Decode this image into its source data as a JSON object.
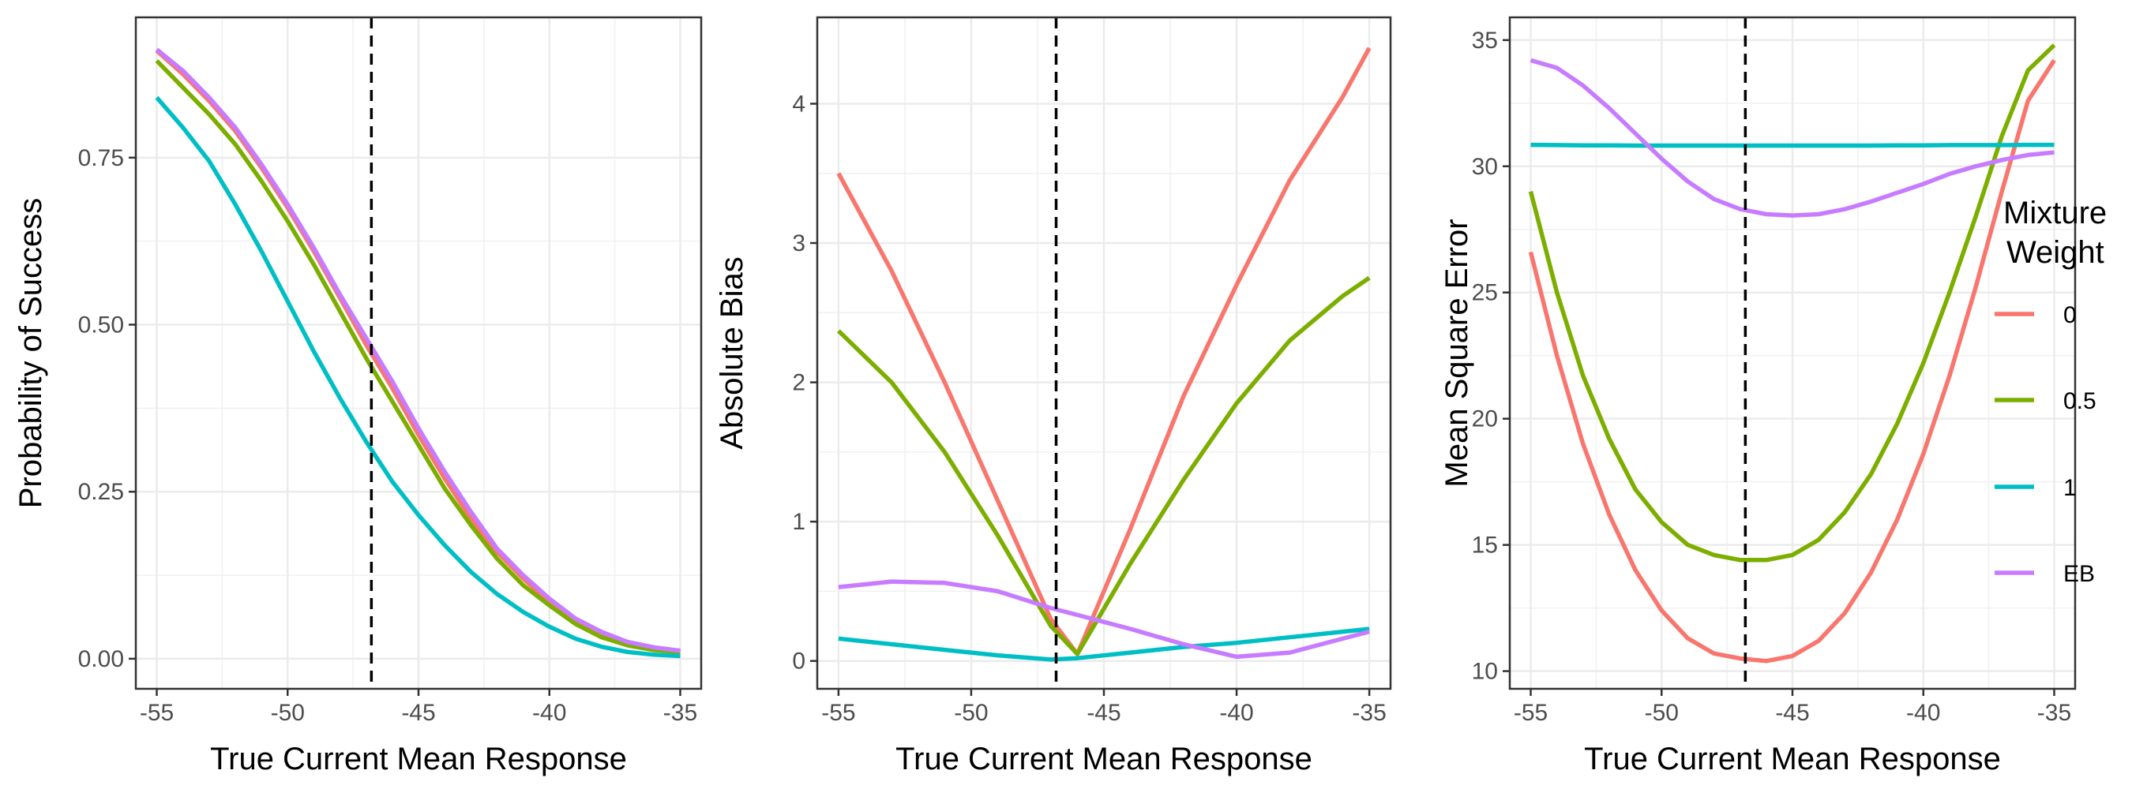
{
  "legend": {
    "title_line1": "Mixture",
    "title_line2": "Weight",
    "items": [
      {
        "label": "0",
        "color": "#F8766D"
      },
      {
        "label": "0.5",
        "color": "#7CAE00"
      },
      {
        "label": "1",
        "color": "#00BFC4"
      },
      {
        "label": "EB",
        "color": "#C77CFF"
      }
    ]
  },
  "chart_data": [
    {
      "type": "line",
      "xlabel": "True Current Mean Response",
      "ylabel": "Probability of Success",
      "xlim": [
        -55.8,
        -34.2
      ],
      "ylim": [
        -0.045,
        0.96
      ],
      "xticks": [
        -55,
        -50,
        -45,
        -40,
        -35
      ],
      "xtick_labels": [
        "-55",
        "-50",
        "-45",
        "-40",
        "-35"
      ],
      "yticks": [
        0,
        0.25,
        0.5,
        0.75
      ],
      "ytick_labels": [
        "0.00",
        "0.25",
        "0.50",
        "0.75"
      ],
      "vline": -46.8,
      "grid": true,
      "x": [
        -55,
        -54,
        -53,
        -52,
        -51,
        -50,
        -49,
        -48,
        -47,
        -46,
        -45,
        -44,
        -43,
        -42,
        -41,
        -40,
        -39,
        -38,
        -37,
        -36,
        -35
      ],
      "series": [
        {
          "name": "0",
          "color": "#F8766D",
          "values": [
            0.91,
            0.875,
            0.835,
            0.79,
            0.735,
            0.675,
            0.61,
            0.54,
            0.47,
            0.405,
            0.335,
            0.27,
            0.21,
            0.16,
            0.12,
            0.085,
            0.055,
            0.035,
            0.022,
            0.015,
            0.012
          ]
        },
        {
          "name": "0.5",
          "color": "#7CAE00",
          "values": [
            0.895,
            0.855,
            0.815,
            0.77,
            0.715,
            0.655,
            0.59,
            0.52,
            0.45,
            0.385,
            0.32,
            0.255,
            0.2,
            0.15,
            0.11,
            0.08,
            0.052,
            0.032,
            0.02,
            0.013,
            0.01
          ]
        },
        {
          "name": "1",
          "color": "#00BFC4",
          "values": [
            0.84,
            0.795,
            0.745,
            0.68,
            0.61,
            0.535,
            0.46,
            0.39,
            0.325,
            0.265,
            0.215,
            0.17,
            0.13,
            0.097,
            0.07,
            0.048,
            0.03,
            0.018,
            0.01,
            0.006,
            0.004
          ]
        },
        {
          "name": "EB",
          "color": "#C77CFF",
          "values": [
            0.912,
            0.88,
            0.84,
            0.795,
            0.74,
            0.68,
            0.615,
            0.545,
            0.48,
            0.415,
            0.345,
            0.28,
            0.22,
            0.165,
            0.125,
            0.09,
            0.06,
            0.04,
            0.025,
            0.017,
            0.012
          ]
        }
      ]
    },
    {
      "type": "line",
      "xlabel": "True Current Mean Response",
      "ylabel": "Absolute Bias",
      "xlim": [
        -55.8,
        -34.2
      ],
      "ylim": [
        -0.2,
        4.62
      ],
      "xticks": [
        -55,
        -50,
        -45,
        -40,
        -35
      ],
      "xtick_labels": [
        "-55",
        "-50",
        "-45",
        "-40",
        "-35"
      ],
      "yticks": [
        0,
        1,
        2,
        3,
        4
      ],
      "ytick_labels": [
        "0",
        "1",
        "2",
        "3",
        "4"
      ],
      "vline": -46.8,
      "grid": true,
      "x": [
        -55,
        -53,
        -51,
        -49,
        -47,
        -46,
        -44,
        -42,
        -40,
        -38,
        -36,
        -35
      ],
      "series": [
        {
          "name": "0",
          "color": "#F8766D",
          "values": [
            3.5,
            2.8,
            2.0,
            1.15,
            0.3,
            0.05,
            0.95,
            1.9,
            2.7,
            3.45,
            4.05,
            4.4
          ]
        },
        {
          "name": "0.5",
          "color": "#7CAE00",
          "values": [
            2.37,
            2.0,
            1.5,
            0.9,
            0.25,
            0.05,
            0.7,
            1.3,
            1.85,
            2.3,
            2.62,
            2.75
          ]
        },
        {
          "name": "1",
          "color": "#00BFC4",
          "values": [
            0.16,
            0.12,
            0.08,
            0.04,
            0.01,
            0.02,
            0.06,
            0.1,
            0.13,
            0.17,
            0.21,
            0.23
          ]
        },
        {
          "name": "EB",
          "color": "#C77CFF",
          "values": [
            0.53,
            0.57,
            0.56,
            0.5,
            0.38,
            0.33,
            0.23,
            0.12,
            0.03,
            0.06,
            0.16,
            0.21
          ]
        }
      ]
    },
    {
      "type": "line",
      "xlabel": "True Current Mean Response",
      "ylabel": "Mean Square Error",
      "xlim": [
        -55.8,
        -34.2
      ],
      "ylim": [
        9.3,
        35.9
      ],
      "xticks": [
        -55,
        -50,
        -45,
        -40,
        -35
      ],
      "xtick_labels": [
        "-55",
        "-50",
        "-45",
        "-40",
        "-35"
      ],
      "yticks": [
        10,
        15,
        20,
        25,
        30,
        35
      ],
      "ytick_labels": [
        "10",
        "15",
        "20",
        "25",
        "30",
        "35"
      ],
      "vline": -46.8,
      "grid": true,
      "x": [
        -55,
        -54,
        -53,
        -52,
        -51,
        -50,
        -49,
        -48,
        -47,
        -46,
        -45,
        -44,
        -43,
        -42,
        -41,
        -40,
        -39,
        -38,
        -37,
        -36,
        -35
      ],
      "series": [
        {
          "name": "0",
          "color": "#F8766D",
          "values": [
            26.6,
            22.5,
            19.0,
            16.2,
            14.0,
            12.4,
            11.3,
            10.7,
            10.5,
            10.4,
            10.6,
            11.2,
            12.3,
            13.9,
            16.0,
            18.6,
            21.7,
            25.2,
            29.0,
            32.6,
            34.2
          ]
        },
        {
          "name": "0.5",
          "color": "#7CAE00",
          "values": [
            29.0,
            25.0,
            21.7,
            19.2,
            17.2,
            15.9,
            15.0,
            14.6,
            14.4,
            14.4,
            14.6,
            15.2,
            16.3,
            17.8,
            19.8,
            22.2,
            25.0,
            28.0,
            31.2,
            33.8,
            34.8
          ]
        },
        {
          "name": "1",
          "color": "#00BFC4",
          "values": [
            30.85,
            30.84,
            30.83,
            30.83,
            30.82,
            30.82,
            30.82,
            30.82,
            30.82,
            30.82,
            30.82,
            30.82,
            30.82,
            30.82,
            30.83,
            30.83,
            30.84,
            30.84,
            30.84,
            30.85,
            30.85
          ]
        },
        {
          "name": "EB",
          "color": "#C77CFF",
          "values": [
            34.2,
            33.9,
            33.2,
            32.3,
            31.3,
            30.3,
            29.4,
            28.7,
            28.3,
            28.1,
            28.05,
            28.1,
            28.3,
            28.6,
            28.95,
            29.3,
            29.7,
            30.0,
            30.25,
            30.45,
            30.55
          ]
        }
      ]
    }
  ]
}
